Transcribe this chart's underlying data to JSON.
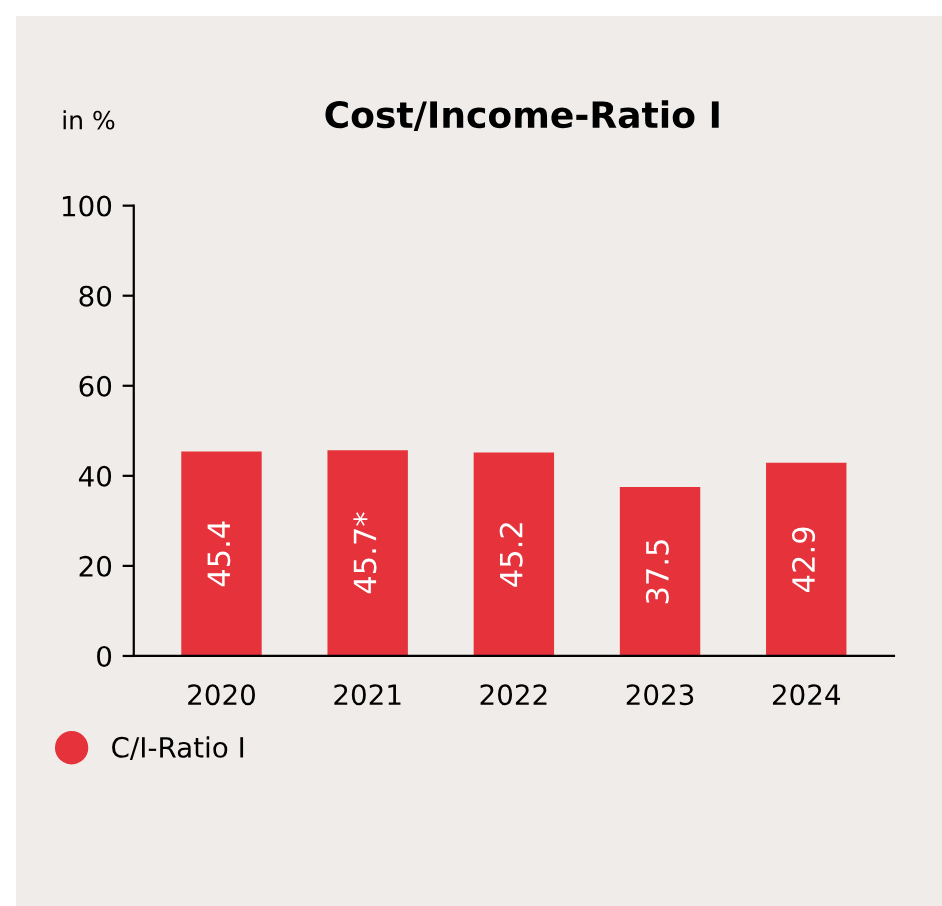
{
  "chart_data": {
    "type": "bar",
    "title": "Cost/Income-Ratio I",
    "ylabel": "in %",
    "categories": [
      "2020",
      "2021",
      "2022",
      "2023",
      "2024"
    ],
    "series": [
      {
        "name": "C/I-Ratio I",
        "color": "#e5323b",
        "values": [
          45.4,
          45.7,
          45.2,
          37.5,
          42.9
        ],
        "value_labels": [
          "45.4",
          "45.7*",
          "45.2",
          "37.5",
          "42.9"
        ]
      }
    ],
    "ylim": [
      0,
      100
    ],
    "yticks": [
      0,
      20,
      40,
      60,
      80,
      100
    ],
    "grid": false,
    "legend": "bottom left"
  }
}
